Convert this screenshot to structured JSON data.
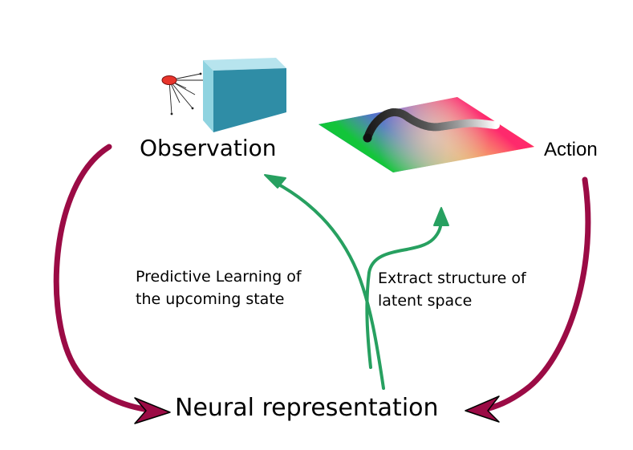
{
  "labels": {
    "observation": "Observation",
    "action": "Action",
    "neural": "Neural representation"
  },
  "notes": {
    "predictive": [
      "Predictive Learning of",
      "the upcoming state"
    ],
    "extract": [
      "Extract structure of",
      "latent space"
    ]
  },
  "colors": {
    "loop_arrow": "#9b0b45",
    "flow_arrow": "#27a060",
    "cube_front": "#2f8da6",
    "cube_side": "#8fd3e0"
  },
  "icons": {
    "eye": "eye-icon",
    "cube": "cube-icon",
    "surface": "color-map-surface-icon"
  }
}
